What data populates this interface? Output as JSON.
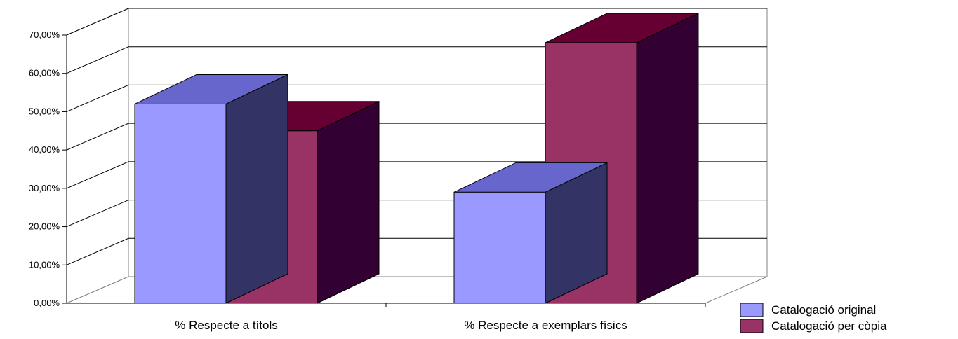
{
  "chart_data": {
    "type": "bar",
    "style": "3d-clustered-column",
    "title": "",
    "xlabel": "",
    "ylabel": "",
    "categories": [
      "% Respecte a títols",
      "% Respecte a exemplars físics"
    ],
    "series": [
      {
        "name": "Catalogació original",
        "values": [
          52.0,
          29.0
        ],
        "color": "#9999ff",
        "color_top": "#6666cc",
        "color_side": "#333366"
      },
      {
        "name": "Catalogació per còpia",
        "values": [
          45.0,
          68.0
        ],
        "color": "#993366",
        "color_top": "#660033",
        "color_side": "#330033"
      }
    ],
    "ylim": [
      0,
      70
    ],
    "y_ticks": [
      "0,00%",
      "10,00%",
      "20,00%",
      "30,00%",
      "40,00%",
      "50,00%",
      "60,00%",
      "70,00%"
    ],
    "grid": true,
    "legend_position": "bottom-right"
  }
}
